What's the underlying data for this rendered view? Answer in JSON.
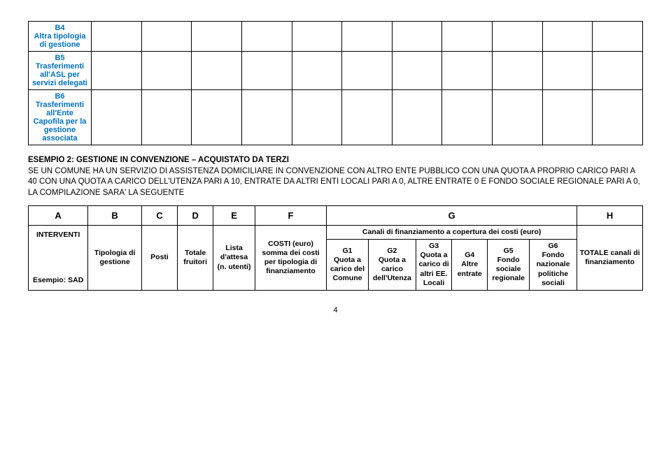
{
  "topTable": {
    "rows": [
      {
        "label": "B4\nAltra tipologia di gestione"
      },
      {
        "label": "B5\nTrasferimenti all'ASL per servizi delegati"
      },
      {
        "label": "B6\nTrasferimenti all'Ente Capofila per la gestione associata"
      }
    ],
    "emptyCols": 11,
    "label_color": "#0070c0"
  },
  "paragraph": {
    "title": "ESEMPIO 2: GESTIONE IN CONVENZIONE – ACQUISTATO DA TERZI",
    "body": "SE UN COMUNE HA UN SERVIZIO DI ASSISTENZA DOMICILIARE IN CONVENZIONE CON ALTRO ENTE PUBBLICO CON UNA QUOTA A PROPRIO CARICO PARI A 40 CON UNA QUOTA A CARICO DELL'UTENZA PARI A 10, ENTRATE DA ALTRI ENTI LOCALI PARI A 0, ALTRE ENTRATE 0 E FONDO SOCIALE REGIONALE PARI A 0, LA COMPILAZIONE SARA' LA SEGUENTE"
  },
  "mainTable": {
    "letters": [
      "A",
      "B",
      "C",
      "D",
      "E",
      "F",
      "G",
      "H"
    ],
    "headers": {
      "A": "INTERVENTI",
      "A2": "Esempio: SAD",
      "B": "Tipologia di gestione",
      "C": "Posti",
      "D": "Totale fruitori",
      "E": "Lista d'attesa (n. utenti)",
      "F": "COSTI (euro) somma dei costi per tipologia di finanziamento",
      "G_span": "Canali di finanziamento a copertura dei costi (euro)",
      "G1": "G1\nQuota a carico del Comune",
      "G2": "G2\nQuota a carico dell'Utenza",
      "G3": "G3\nQuota a carico di altri EE. Locali",
      "G4": "G4\nAltre entrate",
      "G5": "G5\nFondo sociale regionale",
      "G6": "G6\nFondo nazionale politiche sociali",
      "H": "TOTALE canali di finanziamento"
    }
  },
  "pageNumber": "4",
  "colors": {
    "blue": "#0070c0",
    "border": "#000000",
    "background": "#ffffff",
    "text": "#000000"
  }
}
